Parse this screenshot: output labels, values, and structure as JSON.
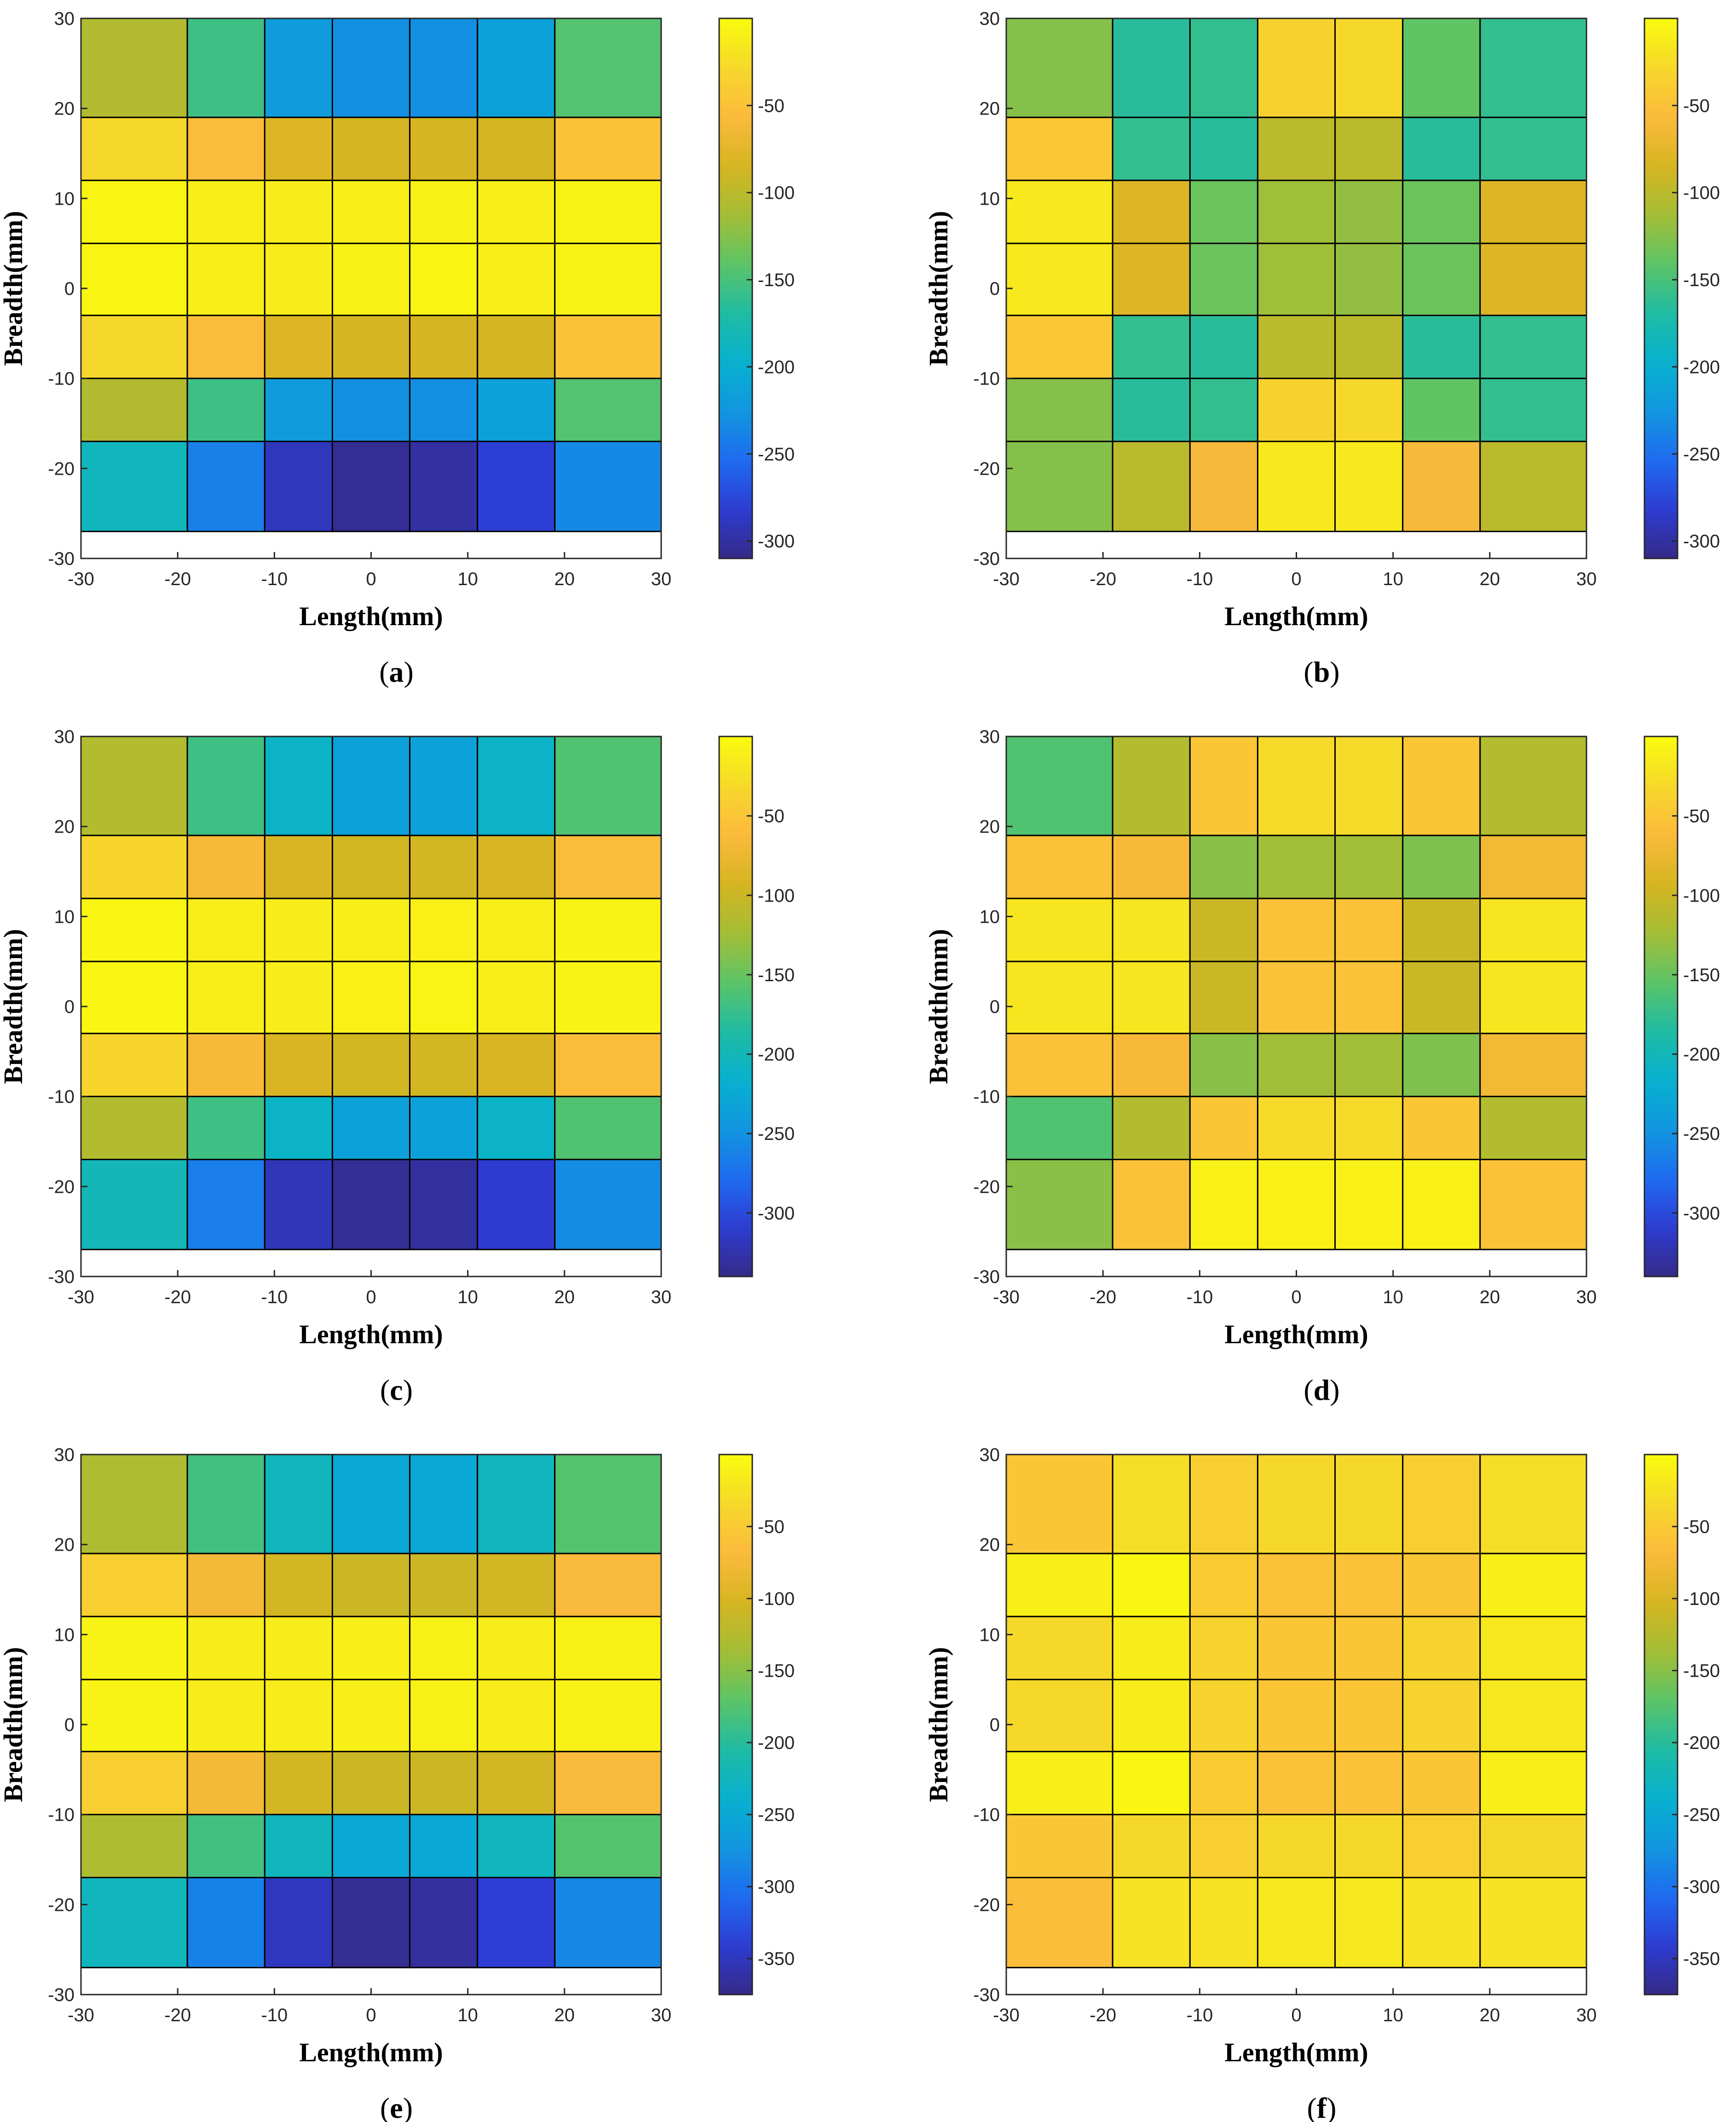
{
  "chart_data": [
    {
      "panel": "a",
      "caption_letter": "a",
      "type": "heatmap",
      "xlabel": "Length(mm)",
      "ylabel": "Breadth(mm)",
      "xlim": [
        -30,
        30
      ],
      "ylim": [
        -30,
        30
      ],
      "xticks": [
        "-30",
        "-20",
        "-10",
        "0",
        "10",
        "20",
        "30"
      ],
      "yticks": [
        "30",
        "20",
        "10",
        "0",
        "-10",
        "-20",
        "-30"
      ],
      "x_edges": [
        -30,
        -19,
        -11,
        -4,
        4,
        11,
        19,
        30
      ],
      "y_edges": [
        30,
        19,
        12,
        5,
        -3,
        -10,
        -17,
        -27
      ],
      "grid": "true",
      "colorbar": {
        "clim": [
          -310,
          0
        ],
        "ticks": [
          -50,
          -100,
          -150,
          -200,
          -250,
          -300
        ],
        "tick_labels": [
          "-50",
          "-100",
          "-150",
          "-200",
          "-250",
          "-300"
        ]
      },
      "values": [
        [
          -105,
          -155,
          -220,
          -230,
          -230,
          -215,
          -145
        ],
        [
          -30,
          -55,
          -80,
          -85,
          -85,
          -85,
          -50
        ],
        [
          -5,
          -10,
          -12,
          -10,
          -8,
          -10,
          -7
        ],
        [
          -5,
          -10,
          -12,
          -8,
          -5,
          -10,
          -7
        ],
        [
          -30,
          -55,
          -80,
          -85,
          -85,
          -85,
          -50
        ],
        [
          -105,
          -155,
          -220,
          -230,
          -230,
          -215,
          -145
        ],
        [
          -185,
          -240,
          -290,
          -305,
          -300,
          -280,
          -235
        ]
      ]
    },
    {
      "panel": "b",
      "caption_letter": "b",
      "type": "heatmap",
      "xlabel": "Length(mm)",
      "ylabel": "Breadth(mm)",
      "xlim": [
        -30,
        30
      ],
      "ylim": [
        -30,
        30
      ],
      "xticks": [
        "-30",
        "-20",
        "-10",
        "0",
        "10",
        "20",
        "30"
      ],
      "yticks": [
        "30",
        "20",
        "10",
        "0",
        "-10",
        "-20",
        "-30"
      ],
      "x_edges": [
        -30,
        -19,
        -11,
        -4,
        4,
        11,
        19,
        30
      ],
      "y_edges": [
        30,
        19,
        12,
        5,
        -3,
        -10,
        -17,
        -27
      ],
      "grid": "true",
      "colorbar": {
        "clim": [
          -310,
          0
        ],
        "ticks": [
          -50,
          -100,
          -150,
          -200,
          -250,
          -300
        ],
        "tick_labels": [
          "-50",
          "-100",
          "-150",
          "-200",
          "-250",
          "-300"
        ]
      },
      "values": [
        [
          -125,
          -165,
          -160,
          -35,
          -30,
          -140,
          -160
        ],
        [
          -45,
          -160,
          -165,
          -100,
          -100,
          -165,
          -160
        ],
        [
          -15,
          -80,
          -135,
          -115,
          -120,
          -135,
          -80
        ],
        [
          -15,
          -80,
          -135,
          -115,
          -120,
          -135,
          -80
        ],
        [
          -45,
          -160,
          -165,
          -100,
          -100,
          -165,
          -160
        ],
        [
          -125,
          -165,
          -160,
          -35,
          -30,
          -140,
          -160
        ],
        [
          -125,
          -100,
          -60,
          -15,
          -15,
          -60,
          -100
        ]
      ]
    },
    {
      "panel": "c",
      "caption_letter": "c",
      "type": "heatmap",
      "xlabel": "Length(mm)",
      "ylabel": "Breadth(mm)",
      "xlim": [
        -30,
        30
      ],
      "ylim": [
        -30,
        30
      ],
      "xticks": [
        "-30",
        "-20",
        "-10",
        "0",
        "10",
        "20",
        "30"
      ],
      "yticks": [
        "30",
        "20",
        "10",
        "0",
        "-10",
        "-20",
        "-30"
      ],
      "x_edges": [
        -30,
        -19,
        -11,
        -4,
        4,
        11,
        19,
        30
      ],
      "y_edges": [
        30,
        19,
        12,
        5,
        -3,
        -10,
        -17,
        -27
      ],
      "grid": "true",
      "colorbar": {
        "clim": [
          -340,
          0
        ],
        "ticks": [
          -50,
          -100,
          -150,
          -200,
          -250,
          -300
        ],
        "tick_labels": [
          "-50",
          "-100",
          "-150",
          "-200",
          "-250",
          "-300"
        ]
      },
      "values": [
        [
          -115,
          -170,
          -210,
          -235,
          -235,
          -210,
          -160
        ],
        [
          -35,
          -65,
          -90,
          -95,
          -95,
          -90,
          -60
        ],
        [
          -5,
          -12,
          -14,
          -12,
          -10,
          -12,
          -8
        ],
        [
          -5,
          -12,
          -14,
          -10,
          -6,
          -12,
          -8
        ],
        [
          -35,
          -65,
          -90,
          -95,
          -95,
          -90,
          -60
        ],
        [
          -115,
          -170,
          -210,
          -235,
          -235,
          -210,
          -160
        ],
        [
          -200,
          -265,
          -320,
          -335,
          -330,
          -310,
          -255
        ]
      ]
    },
    {
      "panel": "d",
      "caption_letter": "d",
      "type": "heatmap",
      "xlabel": "Length(mm)",
      "ylabel": "Breadth(mm)",
      "xlim": [
        -30,
        30
      ],
      "ylim": [
        -30,
        30
      ],
      "xticks": [
        "-30",
        "-20",
        "-10",
        "0",
        "10",
        "20",
        "30"
      ],
      "yticks": [
        "30",
        "20",
        "10",
        "0",
        "-10",
        "-20",
        "-30"
      ],
      "x_edges": [
        -30,
        -19,
        -11,
        -4,
        4,
        11,
        19,
        30
      ],
      "y_edges": [
        30,
        19,
        12,
        5,
        -3,
        -10,
        -17,
        -27
      ],
      "grid": "true",
      "colorbar": {
        "clim": [
          -340,
          0
        ],
        "ticks": [
          -50,
          -100,
          -150,
          -200,
          -250,
          -300
        ],
        "tick_labels": [
          "-50",
          "-100",
          "-150",
          "-200",
          "-250",
          "-300"
        ]
      },
      "values": [
        [
          -160,
          -115,
          -50,
          -30,
          -30,
          -50,
          -115
        ],
        [
          -55,
          -65,
          -135,
          -125,
          -125,
          -140,
          -70
        ],
        [
          -20,
          -20,
          -100,
          -55,
          -55,
          -100,
          -20
        ],
        [
          -20,
          -20,
          -100,
          -55,
          -55,
          -100,
          -20
        ],
        [
          -55,
          -65,
          -135,
          -125,
          -125,
          -140,
          -70
        ],
        [
          -160,
          -115,
          -50,
          -30,
          -30,
          -50,
          -115
        ],
        [
          -135,
          -55,
          -10,
          -10,
          -10,
          -10,
          -55
        ]
      ]
    },
    {
      "panel": "e",
      "caption_letter": "e",
      "type": "heatmap",
      "xlabel": "Length(mm)",
      "ylabel": "Breadth(mm)",
      "xlim": [
        -30,
        30
      ],
      "ylim": [
        -30,
        30
      ],
      "xticks": [
        "-30",
        "-20",
        "-10",
        "0",
        "10",
        "20",
        "30"
      ],
      "yticks": [
        "30",
        "20",
        "10",
        "0",
        "-10",
        "-20",
        "-30"
      ],
      "x_edges": [
        -30,
        -19,
        -11,
        -4,
        4,
        11,
        19,
        30
      ],
      "y_edges": [
        30,
        19,
        12,
        5,
        -3,
        -10,
        -17,
        -27
      ],
      "grid": "true",
      "colorbar": {
        "clim": [
          -375,
          0
        ],
        "ticks": [
          -50,
          -100,
          -150,
          -200,
          -250,
          -300,
          -350
        ],
        "tick_labels": [
          "-50",
          "-100",
          "-150",
          "-200",
          "-250",
          "-300",
          "-350"
        ]
      },
      "values": [
        [
          -130,
          -185,
          -225,
          -250,
          -250,
          -225,
          -175
        ],
        [
          -45,
          -75,
          -105,
          -110,
          -110,
          -105,
          -70
        ],
        [
          -8,
          -15,
          -15,
          -12,
          -10,
          -15,
          -10
        ],
        [
          -8,
          -15,
          -15,
          -12,
          -10,
          -15,
          -10
        ],
        [
          -45,
          -75,
          -105,
          -110,
          -110,
          -105,
          -70
        ],
        [
          -130,
          -185,
          -225,
          -250,
          -250,
          -225,
          -175
        ],
        [
          -225,
          -290,
          -350,
          -370,
          -365,
          -340,
          -285
        ]
      ]
    },
    {
      "panel": "f",
      "caption_letter": "f",
      "type": "heatmap",
      "xlabel": "Length(mm)",
      "ylabel": "Breadth(mm)",
      "xlim": [
        -30,
        30
      ],
      "ylim": [
        -30,
        30
      ],
      "xticks": [
        "-30",
        "-20",
        "-10",
        "0",
        "10",
        "20",
        "30"
      ],
      "yticks": [
        "30",
        "20",
        "10",
        "0",
        "-10",
        "-20",
        "-30"
      ],
      "x_edges": [
        -30,
        -19,
        -11,
        -4,
        4,
        11,
        19,
        30
      ],
      "y_edges": [
        30,
        19,
        12,
        5,
        -3,
        -10,
        -17,
        -27
      ],
      "grid": "true",
      "colorbar": {
        "clim": [
          -375,
          0
        ],
        "ticks": [
          -50,
          -100,
          -150,
          -200,
          -250,
          -300,
          -350
        ],
        "tick_labels": [
          "-50",
          "-100",
          "-150",
          "-200",
          "-250",
          "-300",
          "-350"
        ]
      },
      "values": [
        [
          -55,
          -30,
          -45,
          -35,
          -35,
          -45,
          -30
        ],
        [
          -12,
          -5,
          -50,
          -60,
          -60,
          -55,
          -12
        ],
        [
          -35,
          -15,
          -40,
          -55,
          -55,
          -40,
          -20
        ],
        [
          -35,
          -15,
          -40,
          -55,
          -55,
          -40,
          -20
        ],
        [
          -12,
          -5,
          -50,
          -60,
          -60,
          -55,
          -12
        ],
        [
          -55,
          -35,
          -45,
          -35,
          -35,
          -45,
          -35
        ],
        [
          -65,
          -25,
          -25,
          -20,
          -20,
          -25,
          -25
        ]
      ]
    }
  ],
  "colormap": {
    "name": "parula",
    "stops": [
      "#352a87",
      "#2d3cd2",
      "#1f6cf0",
      "#1196df",
      "#07b1cf",
      "#1fbba3",
      "#5cc466",
      "#a5bd35",
      "#d6b521",
      "#fcba3c",
      "#f6d92a",
      "#f9fb0e"
    ]
  }
}
